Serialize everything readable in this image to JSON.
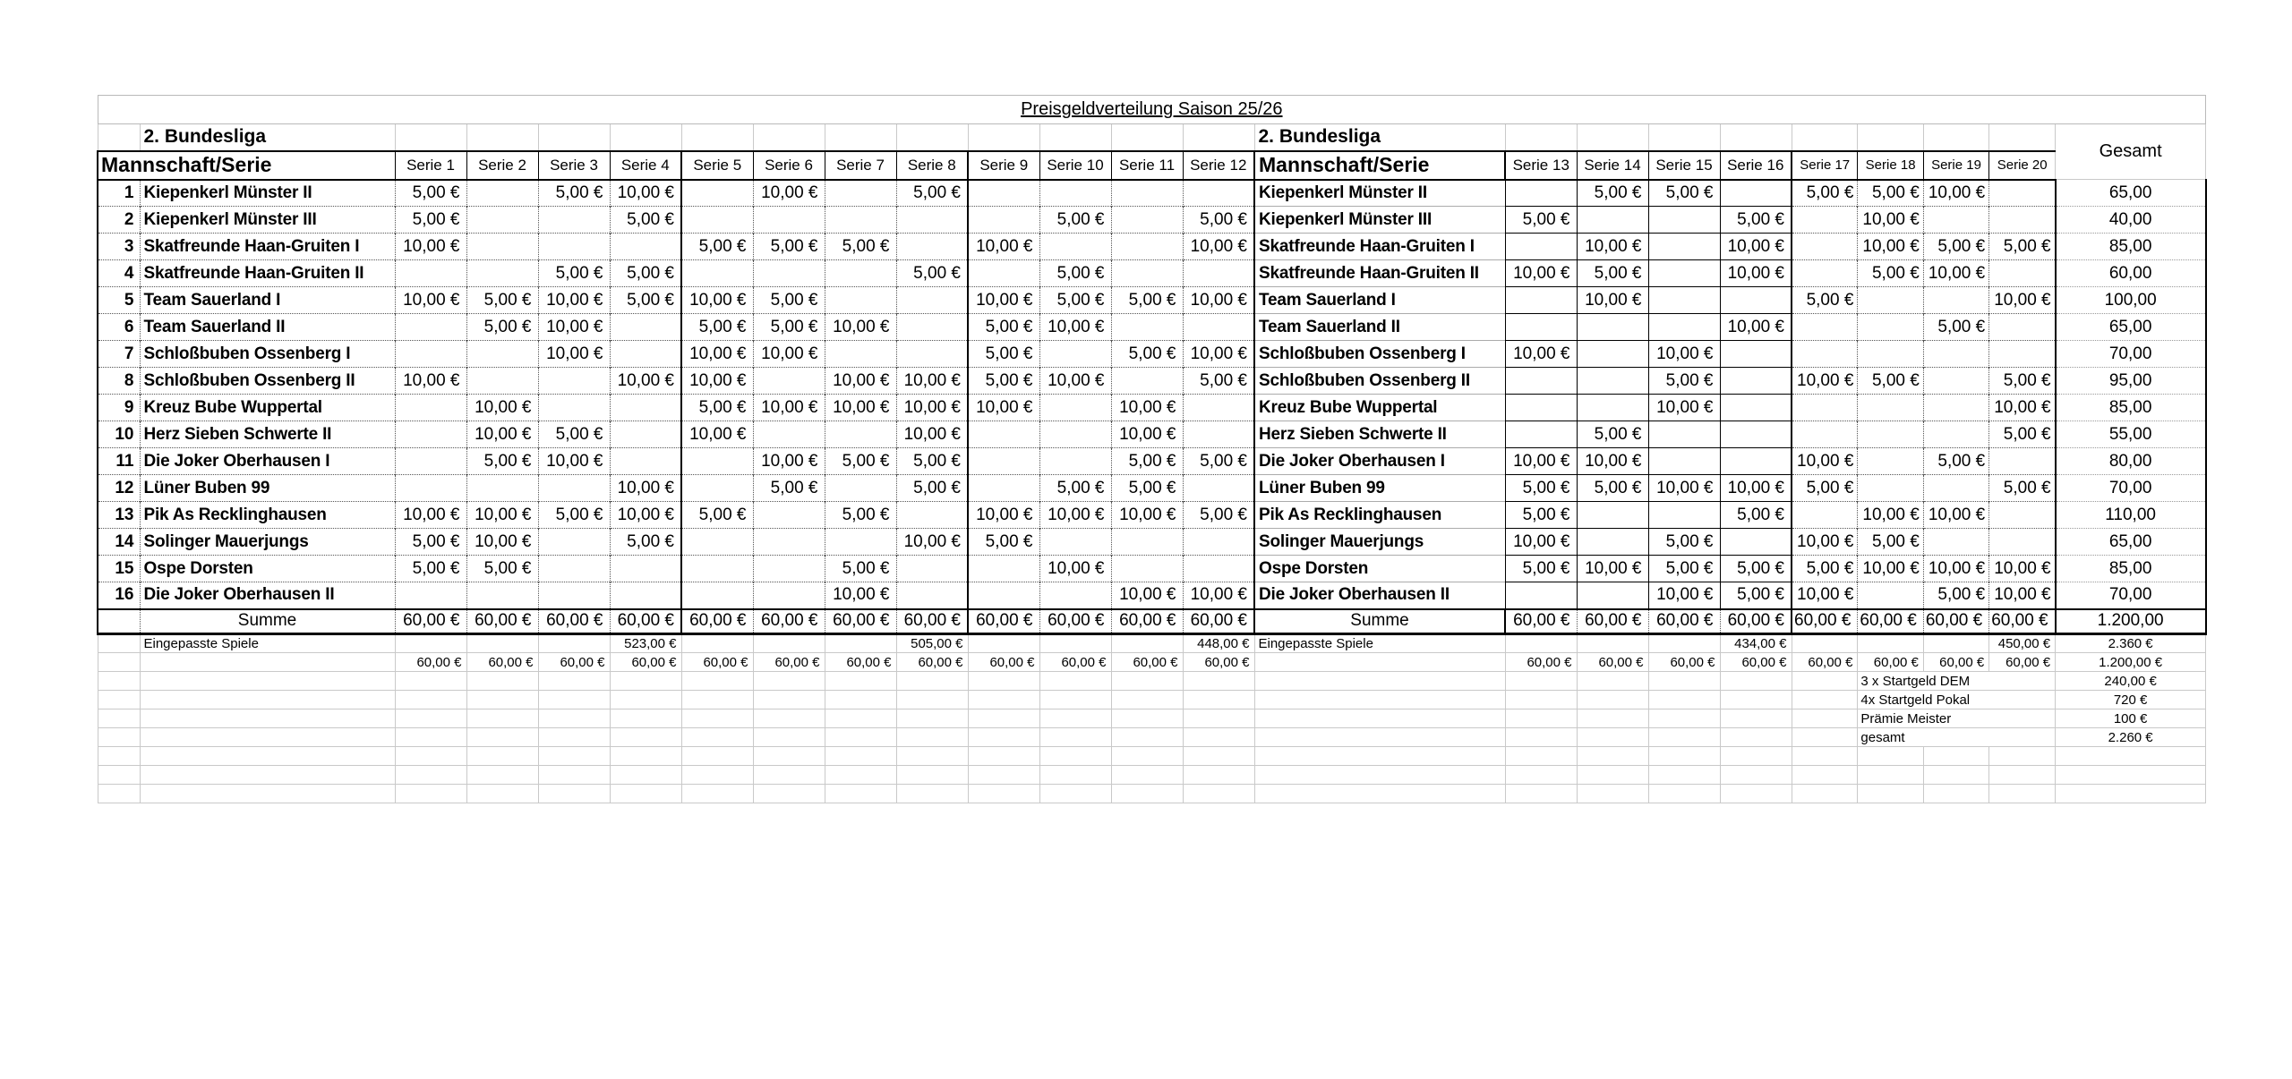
{
  "title": "Preisgeldverteilung Saison 25/26",
  "league_left": "2. Bundesliga",
  "league_right": "2. Bundesliga",
  "header": {
    "mannschaft_left": "Mannschaft/Serie",
    "mannschaft_right": "Mannschaft/Serie",
    "gesamt": "Gesamt",
    "series": [
      "Serie 1",
      "Serie 2",
      "Serie 3",
      "Serie 4",
      "Serie 5",
      "Serie 6",
      "Serie 7",
      "Serie 8",
      "Serie 9",
      "Serie 10",
      "Serie 11",
      "Serie 12",
      "Serie 13",
      "Serie 14",
      "Serie 15",
      "Serie 16",
      "Serie 17",
      "Serie 18",
      "Serie 19",
      "Serie 20"
    ]
  },
  "teams": [
    {
      "num": "1",
      "name": "Kiepenkerl Münster II",
      "values": [
        "5,00 €",
        "",
        "5,00 €",
        "10,00 €",
        "",
        "10,00 €",
        "",
        "5,00 €",
        "",
        "",
        "",
        "",
        "",
        "5,00 €",
        "5,00 €",
        "",
        "5,00 €",
        "5,00 €",
        "10,00 €",
        ""
      ],
      "gesamt": "65,00"
    },
    {
      "num": "2",
      "name": "Kiepenkerl Münster III",
      "values": [
        "5,00 €",
        "",
        "",
        "5,00 €",
        "",
        "",
        "",
        "",
        "",
        "5,00 €",
        "",
        "5,00 €",
        "5,00 €",
        "",
        "",
        "5,00 €",
        "",
        "10,00 €",
        "",
        ""
      ],
      "gesamt": "40,00"
    },
    {
      "num": "3",
      "name": "Skatfreunde Haan-Gruiten I",
      "values": [
        "10,00 €",
        "",
        "",
        "",
        "5,00 €",
        "5,00 €",
        "5,00 €",
        "",
        "10,00 €",
        "",
        "",
        "10,00 €",
        "",
        "10,00 €",
        "",
        "10,00 €",
        "",
        "10,00 €",
        "5,00 €",
        "5,00 €"
      ],
      "gesamt": "85,00"
    },
    {
      "num": "4",
      "name": "Skatfreunde Haan-Gruiten II",
      "values": [
        "",
        "",
        "5,00 €",
        "5,00 €",
        "",
        "",
        "",
        "5,00 €",
        "",
        "5,00 €",
        "",
        "",
        "10,00 €",
        "5,00 €",
        "",
        "10,00 €",
        "",
        "5,00 €",
        "10,00 €",
        ""
      ],
      "gesamt": "60,00"
    },
    {
      "num": "5",
      "name": "Team Sauerland I",
      "values": [
        "10,00 €",
        "5,00 €",
        "10,00 €",
        "5,00 €",
        "10,00 €",
        "5,00 €",
        "",
        "",
        "10,00 €",
        "5,00 €",
        "5,00 €",
        "10,00 €",
        "",
        "10,00 €",
        "",
        "",
        "5,00 €",
        "",
        "",
        "10,00 €"
      ],
      "gesamt": "100,00"
    },
    {
      "num": "6",
      "name": "Team Sauerland II",
      "values": [
        "",
        "5,00 €",
        "10,00 €",
        "",
        "5,00 €",
        "5,00 €",
        "10,00 €",
        "",
        "5,00 €",
        "10,00 €",
        "",
        "",
        "",
        "",
        "",
        "10,00 €",
        "",
        "",
        "5,00 €",
        ""
      ],
      "gesamt": "65,00"
    },
    {
      "num": "7",
      "name": "Schloßbuben Ossenberg I",
      "values": [
        "",
        "",
        "10,00 €",
        "",
        "10,00 €",
        "10,00 €",
        "",
        "",
        "5,00 €",
        "",
        "5,00 €",
        "10,00 €",
        "10,00 €",
        "",
        "10,00 €",
        "",
        "",
        "",
        "",
        ""
      ],
      "gesamt": "70,00"
    },
    {
      "num": "8",
      "name": "Schloßbuben Ossenberg II",
      "values": [
        "10,00 €",
        "",
        "",
        "10,00 €",
        "10,00 €",
        "",
        "10,00 €",
        "10,00 €",
        "5,00 €",
        "10,00 €",
        "",
        "5,00 €",
        "",
        "",
        "5,00 €",
        "",
        "10,00 €",
        "5,00 €",
        "",
        "5,00 €"
      ],
      "gesamt": "95,00"
    },
    {
      "num": "9",
      "name": "Kreuz Bube Wuppertal",
      "values": [
        "",
        "10,00 €",
        "",
        "",
        "5,00 €",
        "10,00 €",
        "10,00 €",
        "10,00 €",
        "10,00 €",
        "",
        "10,00 €",
        "",
        "",
        "",
        "10,00 €",
        "",
        "",
        "",
        "",
        "10,00 €"
      ],
      "gesamt": "85,00"
    },
    {
      "num": "10",
      "name": "Herz Sieben Schwerte II",
      "values": [
        "",
        "10,00 €",
        "5,00 €",
        "",
        "10,00 €",
        "",
        "",
        "10,00 €",
        "",
        "",
        "10,00 €",
        "",
        "",
        "5,00 €",
        "",
        "",
        "",
        "",
        "",
        "5,00 €"
      ],
      "gesamt": "55,00"
    },
    {
      "num": "11",
      "name": "Die Joker Oberhausen I",
      "values": [
        "",
        "5,00 €",
        "10,00 €",
        "",
        "",
        "10,00 €",
        "5,00 €",
        "5,00 €",
        "",
        "",
        "5,00 €",
        "5,00 €",
        "10,00 €",
        "10,00 €",
        "",
        "",
        "10,00 €",
        "",
        "5,00 €",
        ""
      ],
      "gesamt": "80,00"
    },
    {
      "num": "12",
      "name": "Lüner Buben 99",
      "values": [
        "",
        "",
        "",
        "10,00 €",
        "",
        "5,00 €",
        "",
        "5,00 €",
        "",
        "5,00 €",
        "5,00 €",
        "",
        "5,00 €",
        "5,00 €",
        "10,00 €",
        "10,00 €",
        "5,00 €",
        "",
        "",
        "5,00 €"
      ],
      "gesamt": "70,00"
    },
    {
      "num": "13",
      "name": "Pik As Recklinghausen",
      "values": [
        "10,00 €",
        "10,00 €",
        "5,00 €",
        "10,00 €",
        "5,00 €",
        "",
        "5,00 €",
        "",
        "10,00 €",
        "10,00 €",
        "10,00 €",
        "5,00 €",
        "5,00 €",
        "",
        "",
        "5,00 €",
        "",
        "10,00 €",
        "10,00 €",
        ""
      ],
      "gesamt": "110,00"
    },
    {
      "num": "14",
      "name": "Solinger Mauerjungs",
      "values": [
        "5,00 €",
        "10,00 €",
        "",
        "5,00 €",
        "",
        "",
        "",
        "10,00 €",
        "5,00 €",
        "",
        "",
        "",
        "10,00 €",
        "",
        "5,00 €",
        "",
        "10,00 €",
        "5,00 €",
        "",
        ""
      ],
      "gesamt": "65,00"
    },
    {
      "num": "15",
      "name": "Ospe Dorsten",
      "values": [
        "5,00 €",
        "5,00 €",
        "",
        "",
        "",
        "",
        "5,00 €",
        "",
        "",
        "10,00 €",
        "",
        "",
        "5,00 €",
        "10,00 €",
        "5,00 €",
        "5,00 €",
        "5,00 €",
        "10,00 €",
        "10,00 €",
        "10,00 €"
      ],
      "gesamt": "85,00"
    },
    {
      "num": "16",
      "name": "Die Joker Oberhausen II",
      "values": [
        "",
        "",
        "",
        "",
        "",
        "",
        "10,00 €",
        "",
        "",
        "",
        "10,00 €",
        "10,00 €",
        "",
        "",
        "10,00 €",
        "5,00 €",
        "10,00 €",
        "",
        "5,00 €",
        "10,00 €"
      ],
      "gesamt": "70,00"
    }
  ],
  "summe": {
    "label": "Summe",
    "value": "60,00 €",
    "gesamt": "1.200,00"
  },
  "footer": {
    "eingepasste": {
      "label": "Eingepasste Spiele",
      "s4": "523,00 €",
      "s8": "505,00 €",
      "s12": "448,00 €",
      "s16": "434,00 €",
      "s20": "450,00 €",
      "gesamt": "2.360 €"
    },
    "row60": {
      "value": "60,00 €",
      "gesamt": "1.200,00 €"
    },
    "extras": [
      {
        "label": "3 x Startgeld DEM",
        "value": "240,00 €"
      },
      {
        "label": "4x Startgeld Pokal",
        "value": "720 €"
      },
      {
        "label": "Prämie Meister",
        "value": "100 €"
      },
      {
        "label": "gesamt",
        "value": "2.260 €"
      }
    ]
  }
}
